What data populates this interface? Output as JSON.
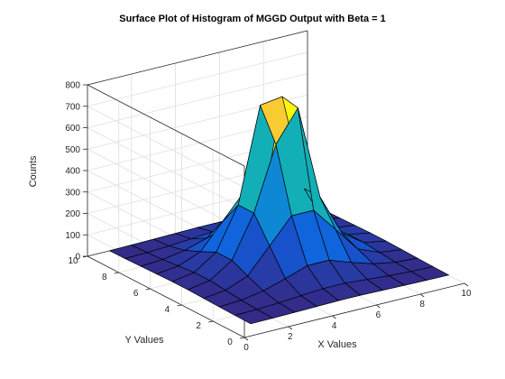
{
  "chart_data": {
    "type": "surface",
    "title": "Surface Plot of Histogram of MGGD Output with Beta = 1",
    "xlabel": "X Values",
    "ylabel": "Y Values",
    "zlabel": "Counts",
    "xlim": [
      0,
      10
    ],
    "ylim": [
      0,
      10
    ],
    "zlim": [
      0,
      800
    ],
    "x_ticks": [
      "0",
      "2",
      "4",
      "6",
      "8",
      "10"
    ],
    "y_ticks": [
      "0",
      "2",
      "4",
      "6",
      "8",
      "10"
    ],
    "z_ticks": [
      "0",
      "100",
      "200",
      "300",
      "400",
      "500",
      "600",
      "700",
      "800"
    ],
    "grid": true,
    "colormap": "parula",
    "x": [
      1,
      2,
      3,
      4,
      5,
      6,
      7,
      8,
      9,
      10
    ],
    "y": [
      1,
      2,
      3,
      4,
      5,
      6,
      7,
      8,
      9,
      10
    ],
    "z": [
      [
        1,
        2,
        4,
        6,
        8,
        8,
        6,
        4,
        2,
        1
      ],
      [
        2,
        5,
        10,
        18,
        26,
        26,
        18,
        10,
        5,
        2
      ],
      [
        4,
        10,
        28,
        60,
        95,
        95,
        60,
        28,
        10,
        4
      ],
      [
        6,
        18,
        60,
        175,
        290,
        290,
        175,
        60,
        18,
        6
      ],
      [
        8,
        26,
        95,
        290,
        585,
        730,
        290,
        95,
        26,
        8
      ],
      [
        8,
        26,
        95,
        290,
        730,
        745,
        290,
        95,
        26,
        8
      ],
      [
        6,
        18,
        60,
        175,
        290,
        290,
        175,
        60,
        18,
        6
      ],
      [
        4,
        10,
        28,
        60,
        95,
        95,
        60,
        28,
        10,
        4
      ],
      [
        2,
        5,
        10,
        18,
        26,
        26,
        18,
        10,
        5,
        2
      ],
      [
        1,
        2,
        4,
        6,
        8,
        8,
        6,
        4,
        2,
        1
      ]
    ]
  }
}
